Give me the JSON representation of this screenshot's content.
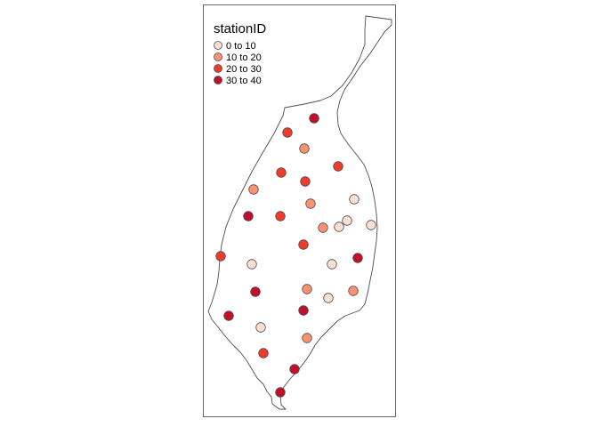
{
  "legend": {
    "title": "stationID",
    "classes": [
      {
        "label": "0 to 10",
        "color": "#fee0d2"
      },
      {
        "label": "10 to 20",
        "color": "#fc9272"
      },
      {
        "label": "20 to 30",
        "color": "#ef3b2c"
      },
      {
        "label": "30 to 40",
        "color": "#c40f2a"
      }
    ]
  },
  "colors": {
    "frame": "#666666",
    "boundary": "#4d4d4d",
    "point_stroke": "#4d4d4d",
    "background": "#ffffff"
  },
  "stations": [
    {
      "class": 3
    },
    {
      "class": 2
    },
    {
      "class": 1
    },
    {
      "class": 2
    },
    {
      "class": 2
    },
    {
      "class": 2
    },
    {
      "class": 1
    },
    {
      "class": 3
    },
    {
      "class": 2
    },
    {
      "class": 1
    },
    {
      "class": 0
    },
    {
      "class": 0
    },
    {
      "class": 1
    },
    {
      "class": 0
    },
    {
      "class": 0
    },
    {
      "class": 2
    },
    {
      "class": 2
    },
    {
      "class": 0
    },
    {
      "class": 0
    },
    {
      "class": 3
    },
    {
      "class": 1
    },
    {
      "class": 0
    },
    {
      "class": 1
    },
    {
      "class": 3
    },
    {
      "class": 3
    },
    {
      "class": 3
    },
    {
      "class": 0
    },
    {
      "class": 1
    },
    {
      "class": 2
    },
    {
      "class": 3
    }
  ]
}
